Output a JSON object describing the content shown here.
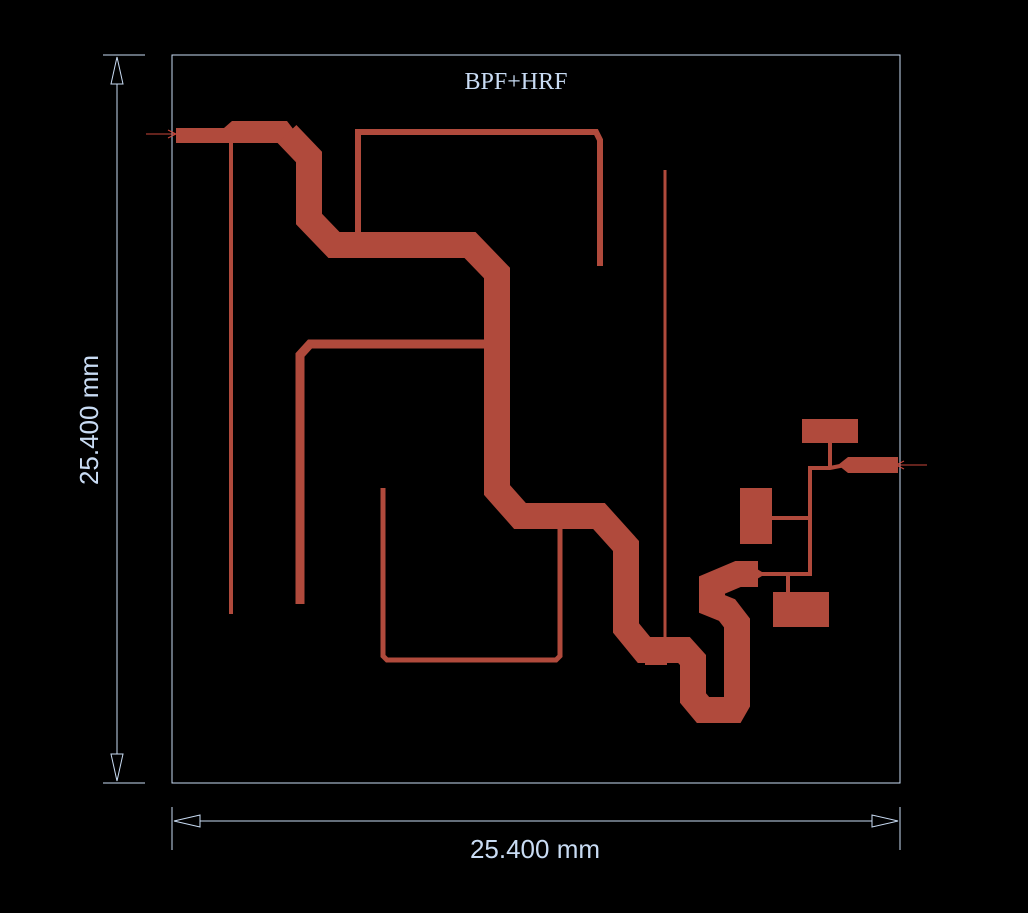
{
  "board": {
    "label": "BPF+HRF",
    "width_dim": "25.400 mm",
    "height_dim": "25.400 mm"
  },
  "colors": {
    "background": "#000000",
    "copper": "#b04a3c",
    "dimension": "#c9dcf4"
  }
}
